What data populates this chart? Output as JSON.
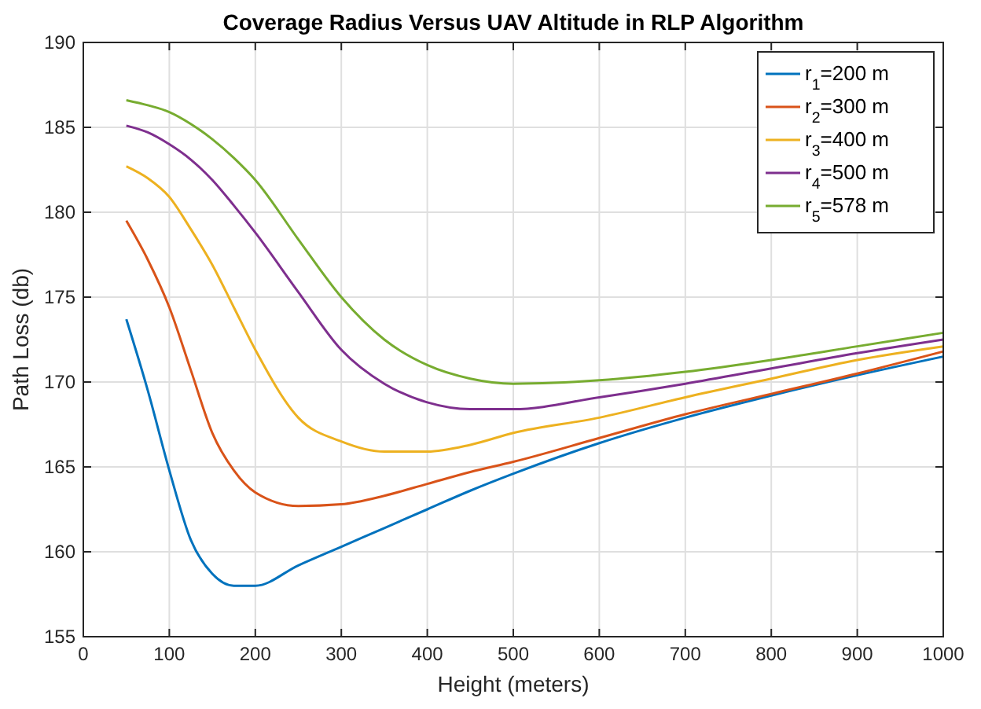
{
  "chart_data": {
    "type": "line",
    "title": "Coverage Radius Versus UAV Altitude in RLP Algorithm",
    "xlabel": "Height (meters)",
    "ylabel": "Path Loss (db)",
    "x": [
      50,
      75,
      100,
      125,
      150,
      175,
      200,
      250,
      300,
      350,
      400,
      450,
      500,
      600,
      700,
      800,
      900,
      1000
    ],
    "series": [
      {
        "name": "r$_{1}$=200 m",
        "color": "#0072bd",
        "values": [
          173.7,
          169.5,
          164.8,
          160.7,
          158.7,
          158.0,
          158.0,
          159.2,
          160.3,
          161.4,
          162.5,
          163.6,
          164.6,
          166.4,
          167.9,
          169.2,
          170.4,
          171.5
        ]
      },
      {
        "name": "r$_{2}$=300 m",
        "color": "#d95319",
        "values": [
          179.5,
          177.2,
          174.4,
          170.7,
          167.0,
          164.8,
          163.5,
          162.7,
          162.8,
          163.3,
          164.0,
          164.7,
          165.3,
          166.7,
          168.1,
          169.3,
          170.5,
          171.8
        ]
      },
      {
        "name": "r$_{3}$=400 m",
        "color": "#edb120",
        "values": [
          182.7,
          182.0,
          180.9,
          179.0,
          176.9,
          174.4,
          171.9,
          167.9,
          166.5,
          165.9,
          165.9,
          166.3,
          167.0,
          167.9,
          169.1,
          170.2,
          171.3,
          172.1
        ]
      },
      {
        "name": "r$_{4}$=500 m",
        "color": "#7e2f8e",
        "values": [
          185.1,
          184.7,
          184.0,
          183.1,
          181.9,
          180.4,
          178.8,
          175.3,
          171.9,
          169.9,
          168.8,
          168.4,
          168.4,
          169.1,
          169.9,
          170.8,
          171.7,
          172.5
        ]
      },
      {
        "name": "r$_{5}$=578 m",
        "color": "#77ac30",
        "values": [
          186.6,
          186.3,
          185.9,
          185.2,
          184.3,
          183.2,
          181.9,
          178.4,
          175.0,
          172.5,
          171.0,
          170.2,
          169.9,
          170.1,
          170.6,
          171.3,
          172.1,
          172.9
        ]
      }
    ],
    "xlim": [
      0,
      1000
    ],
    "xticks": [
      0,
      100,
      200,
      300,
      400,
      500,
      600,
      700,
      800,
      900,
      1000
    ],
    "ylim": [
      155,
      190
    ],
    "yticks": [
      155,
      160,
      165,
      170,
      175,
      180,
      185,
      190
    ],
    "grid": true,
    "legend": "top right",
    "marker": "none",
    "line_style": "solid"
  }
}
